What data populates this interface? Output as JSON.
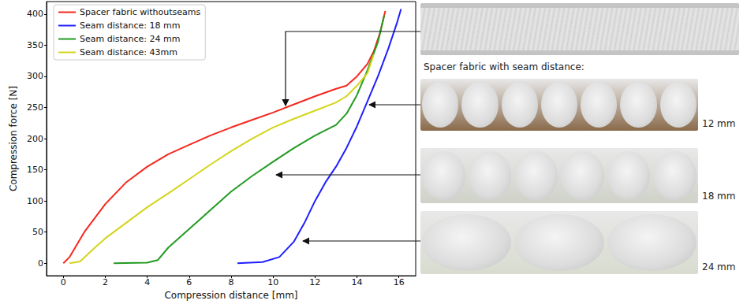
{
  "chart_data": {
    "type": "line",
    "x_label": "Compression distance [mm]",
    "y_label": "Compression force [N]",
    "xlim": [
      -0.8,
      16.8
    ],
    "ylim": [
      -20,
      420
    ],
    "xticks": [
      0,
      2,
      4,
      6,
      8,
      10,
      12,
      14,
      16
    ],
    "yticks": [
      0,
      50,
      100,
      150,
      200,
      250,
      300,
      350,
      400
    ],
    "grid": false,
    "legend": "upper left",
    "series": [
      {
        "name": "Spacer fabric withoutseams",
        "color": "#f5281e",
        "x": [
          0,
          0.3,
          1,
          2,
          3,
          4,
          5,
          6,
          7,
          8,
          9,
          10,
          11,
          12,
          13,
          13.5,
          14,
          14.5,
          14.8,
          15.1,
          15.35
        ],
        "values": [
          0,
          10,
          50,
          95,
          130,
          155,
          175,
          190,
          205,
          218,
          230,
          242,
          255,
          268,
          280,
          285,
          300,
          320,
          340,
          370,
          405
        ]
      },
      {
        "name": "Seam distance: 18 mm",
        "color": "#1f1fff",
        "x": [
          8.3,
          9.5,
          10.3,
          11,
          11.5,
          12,
          12.5,
          13,
          13.5,
          14,
          14.5,
          15,
          15.5,
          15.9,
          16.1
        ],
        "values": [
          0,
          2,
          10,
          35,
          65,
          100,
          130,
          155,
          185,
          220,
          260,
          300,
          345,
          385,
          408
        ]
      },
      {
        "name": "Seam distance: 24 mm",
        "color": "#229a22",
        "x": [
          2.4,
          4,
          4.5,
          5,
          6,
          7,
          8,
          9,
          10,
          11,
          12,
          13,
          13.5,
          14,
          14.5,
          15,
          15.3
        ],
        "values": [
          0,
          1,
          5,
          25,
          55,
          85,
          115,
          140,
          163,
          185,
          205,
          222,
          240,
          270,
          310,
          355,
          398
        ]
      },
      {
        "name": "Seam distance: 43mm",
        "color": "#d4d41c",
        "x": [
          0.3,
          0.8,
          1.5,
          2,
          3,
          4,
          5,
          6,
          7,
          8,
          9,
          10,
          11,
          12,
          13,
          13.5,
          14,
          14.5,
          14.8
        ],
        "values": [
          0,
          3,
          25,
          40,
          65,
          90,
          112,
          135,
          158,
          180,
          200,
          218,
          232,
          245,
          258,
          268,
          285,
          305,
          335
        ]
      }
    ],
    "annotations": [
      "Spacer fabric with seam distance:",
      "12 mm",
      "18 mm",
      "24 mm"
    ]
  }
}
